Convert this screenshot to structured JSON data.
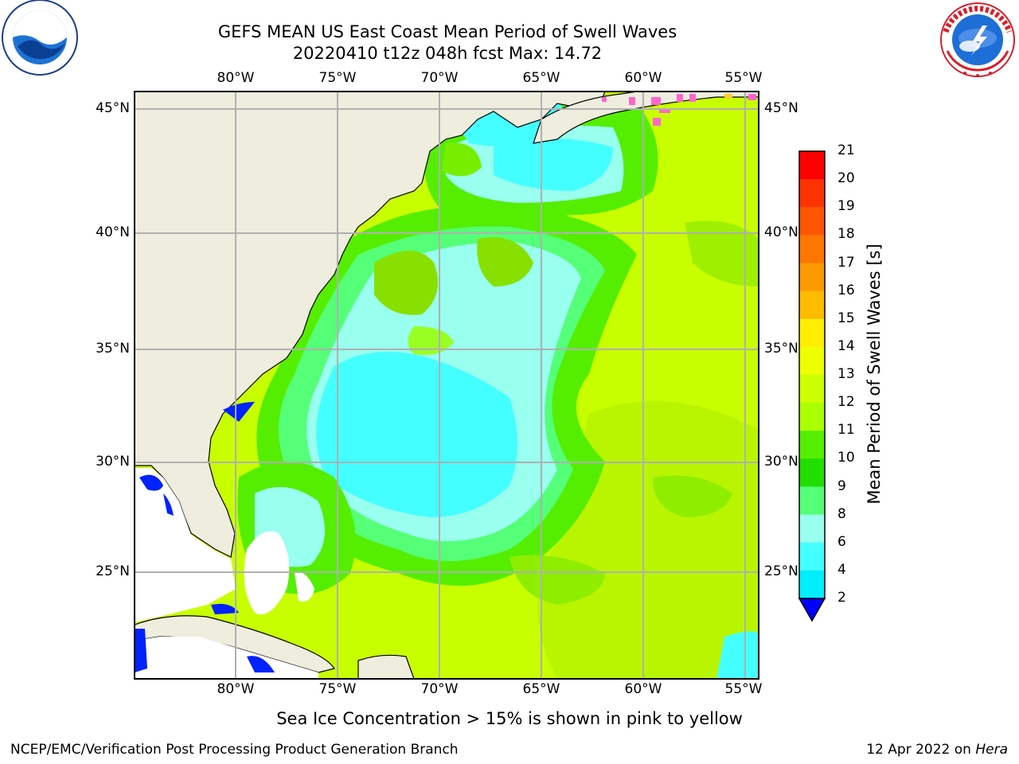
{
  "header": {
    "title_line1": "GEFS MEAN US East Coast Mean Period of Swell Waves",
    "title_line2": "20220410 t12z 048h fcst   Max: 14.72",
    "left_logo_text": "NOAA",
    "left_logo_ring_text": "NATIONAL OCEANIC AND ATMOSPHERIC ADMINISTRATION · U.S. DEPARTMENT OF COMMERCE",
    "right_logo_ring_text": "NATIONAL WEATHER SERVICE"
  },
  "map": {
    "lon_labels": [
      "80°W",
      "75°W",
      "70°W",
      "65°W",
      "60°W",
      "55°W"
    ],
    "lat_labels": [
      "45°N",
      "40°N",
      "35°N",
      "30°N",
      "25°N"
    ],
    "colors": {
      "land": "#eeedde",
      "grid": "#b0b0b0"
    }
  },
  "colorbar": {
    "label": "Mean Period of Swell Waves [s]",
    "ticks": [
      "21",
      "20",
      "19",
      "18",
      "17",
      "16",
      "15",
      "14",
      "13",
      "12",
      "11",
      "10",
      "9",
      "8",
      "6",
      "4",
      "2"
    ],
    "colors_top_to_bottom": [
      "#ff0000",
      "#ff3300",
      "#ff5500",
      "#ff7700",
      "#ff9900",
      "#ffbb00",
      "#ffee00",
      "#eeff00",
      "#ccff00",
      "#aaff00",
      "#55ee00",
      "#22dd00",
      "#55ff77",
      "#99ffee",
      "#44ffff",
      "#00eeff",
      "#0099ff",
      "#0055ff",
      "#0000ff"
    ]
  },
  "note": "Sea Ice Concentration > 15% is shown in pink to yellow",
  "footer": {
    "left": "NCEP/EMC/Verification Post Processing Product Generation Branch",
    "right_date": "12 Apr 2022 on ",
    "right_machine": "Hera"
  }
}
